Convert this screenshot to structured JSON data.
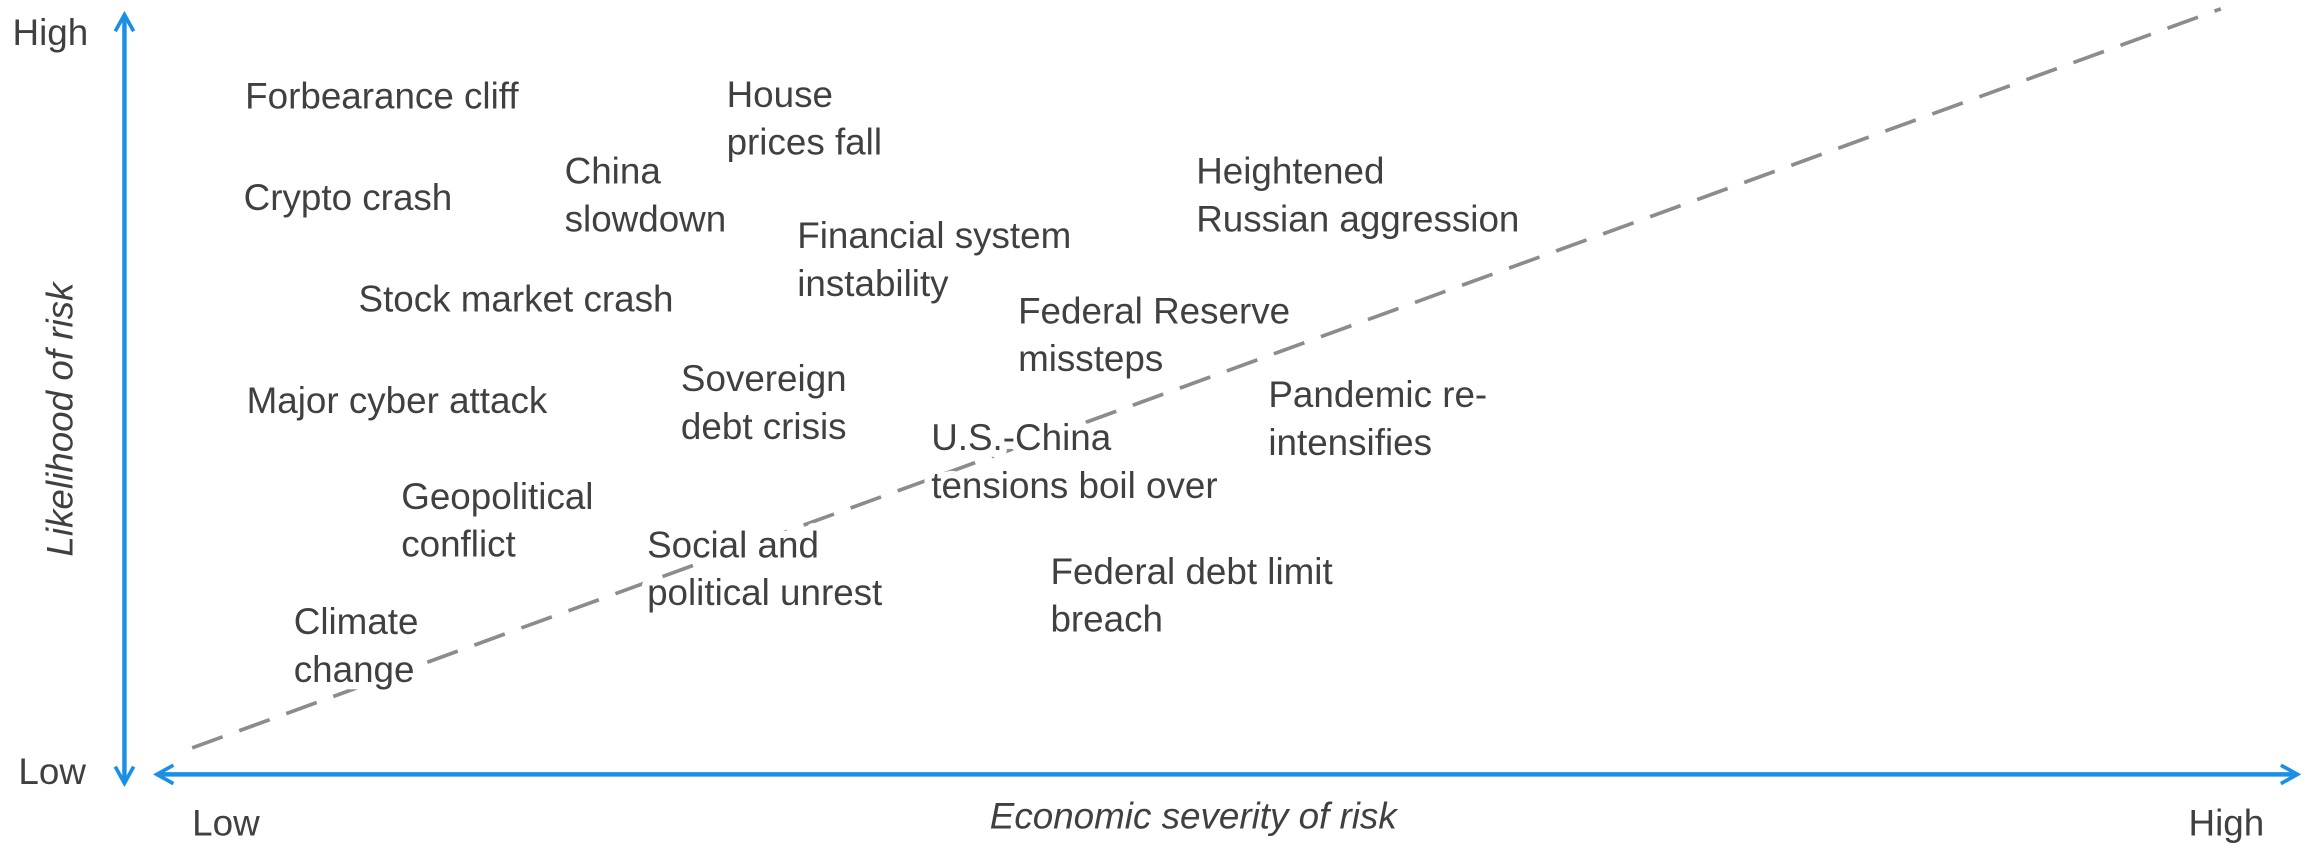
{
  "axes": {
    "y_title": "Likelihood of risk",
    "y_high": "High",
    "y_low": "Low",
    "x_title": "Economic severity of risk",
    "x_low": "Low",
    "x_high": "High"
  },
  "risks": [
    {
      "lines": [
        "Forbearance cliff"
      ]
    },
    {
      "lines": [
        "House",
        "prices fall"
      ]
    },
    {
      "lines": [
        "Crypto crash"
      ]
    },
    {
      "lines": [
        "China",
        "slowdown"
      ]
    },
    {
      "lines": [
        "Heightened",
        "Russian aggression"
      ]
    },
    {
      "lines": [
        "Financial system",
        "instability"
      ]
    },
    {
      "lines": [
        "Stock market crash"
      ]
    },
    {
      "lines": [
        "Federal Reserve",
        "missteps"
      ]
    },
    {
      "lines": [
        "Major cyber attack"
      ]
    },
    {
      "lines": [
        "Sovereign",
        "debt crisis"
      ]
    },
    {
      "lines": [
        "Pandemic re-",
        "intensifies"
      ]
    },
    {
      "lines": [
        "U.S.-China",
        "tensions boil over"
      ]
    },
    {
      "lines": [
        "Geopolitical",
        "conflict"
      ]
    },
    {
      "lines": [
        "Social and",
        "political unrest"
      ]
    },
    {
      "lines": [
        "Federal debt limit",
        "breach"
      ]
    },
    {
      "lines": [
        "Climate",
        "change"
      ]
    }
  ]
}
